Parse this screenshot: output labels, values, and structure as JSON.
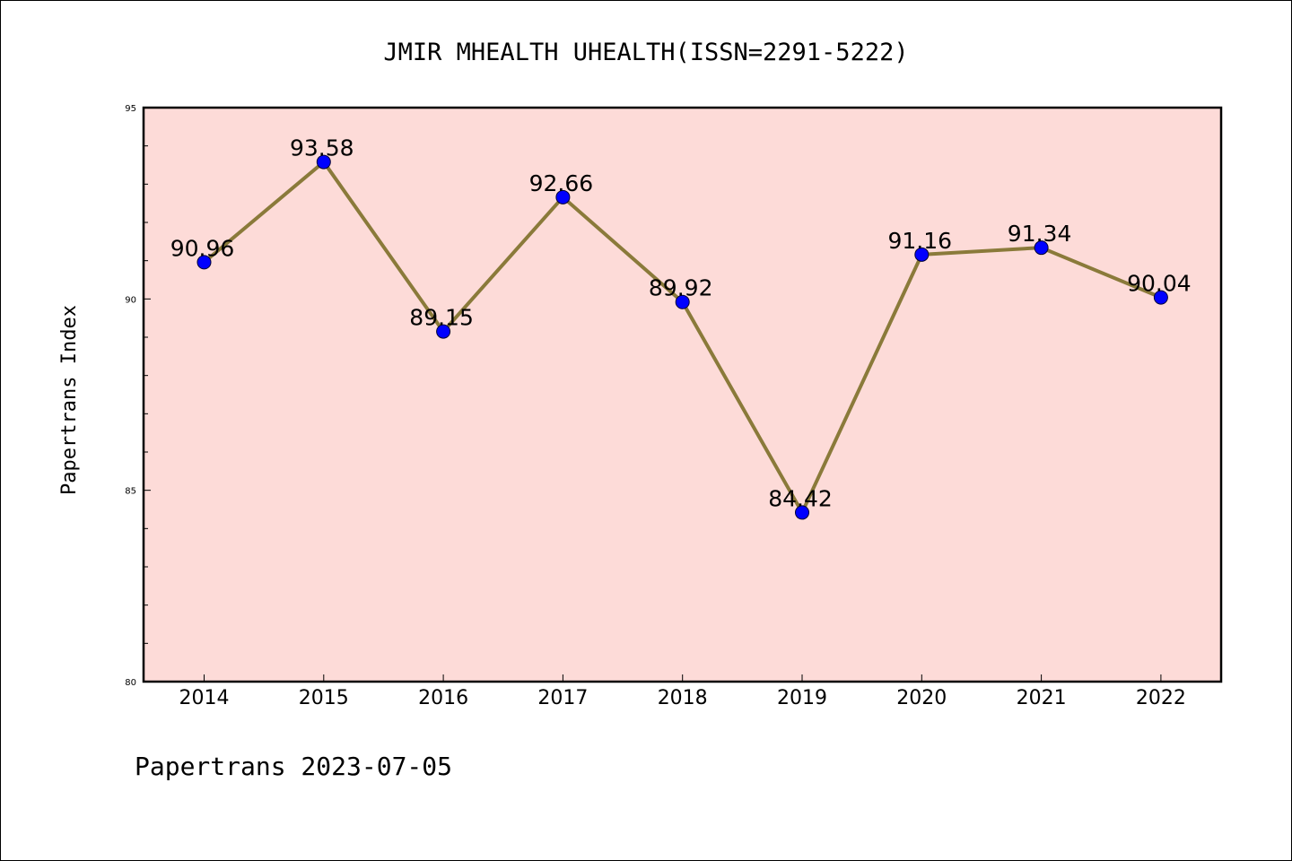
{
  "footer": "Papertrans 2023-07-05",
  "colors": {
    "plot_background": "#fddbd8",
    "line": "#8a7a3a",
    "marker": "#0000ff"
  },
  "chart_data": {
    "type": "line",
    "title": "JMIR MHEALTH UHEALTH(ISSN=2291-5222)",
    "xlabel": "",
    "ylabel": "Papertrans Index",
    "ylim": [
      80,
      95
    ],
    "yticks": [
      80,
      85,
      90,
      95
    ],
    "grid": false,
    "categories": [
      "2014",
      "2015",
      "2016",
      "2017",
      "2018",
      "2019",
      "2020",
      "2021",
      "2022"
    ],
    "series": [
      {
        "values": [
          90.96,
          93.58,
          89.15,
          92.66,
          89.92,
          84.42,
          91.16,
          91.34,
          90.04
        ],
        "labels": [
          "90.96",
          "93.58",
          "89.15",
          "92.66",
          "89.92",
          "84.42",
          "91.16",
          "91.34",
          "90.04"
        ]
      }
    ]
  }
}
